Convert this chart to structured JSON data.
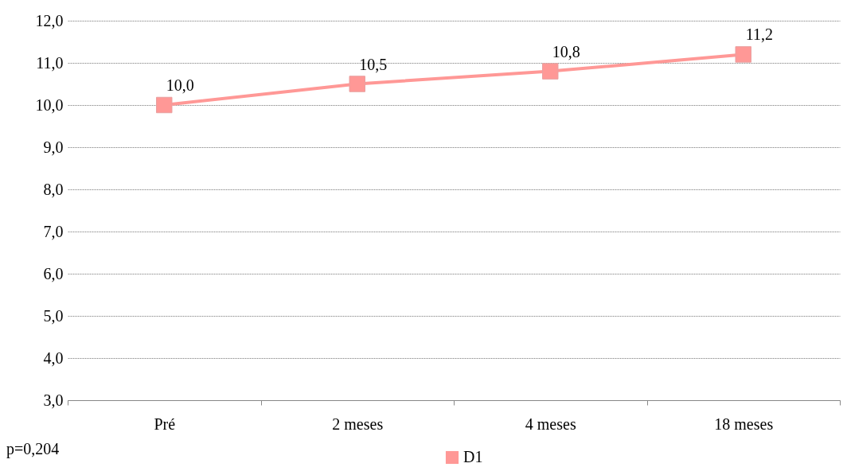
{
  "chart_data": {
    "type": "line",
    "categories": [
      "Pré",
      "2 meses",
      "4 meses",
      "18 meses"
    ],
    "series": [
      {
        "name": "D1",
        "color": "#ff9896",
        "values": [
          10.0,
          10.5,
          10.8,
          11.2
        ],
        "value_labels": [
          "10,0",
          "10,5",
          "10,8",
          "11,2"
        ]
      }
    ],
    "ylim": [
      3,
      12
    ],
    "yticks": [
      {
        "value": 3,
        "label": "3,0"
      },
      {
        "value": 4,
        "label": "4,0"
      },
      {
        "value": 5,
        "label": "5,0"
      },
      {
        "value": 6,
        "label": "6,0"
      },
      {
        "value": 7,
        "label": "7,0"
      },
      {
        "value": 8,
        "label": "8,0"
      },
      {
        "value": 9,
        "label": "9,0"
      },
      {
        "value": 10,
        "label": "10,0"
      },
      {
        "value": 11,
        "label": "11,0"
      },
      {
        "value": 12,
        "label": "12,0"
      }
    ],
    "grid": "y",
    "legend": "bottom",
    "marker": "square",
    "line_style": "solid",
    "annotations": [
      "p=0,204"
    ]
  }
}
